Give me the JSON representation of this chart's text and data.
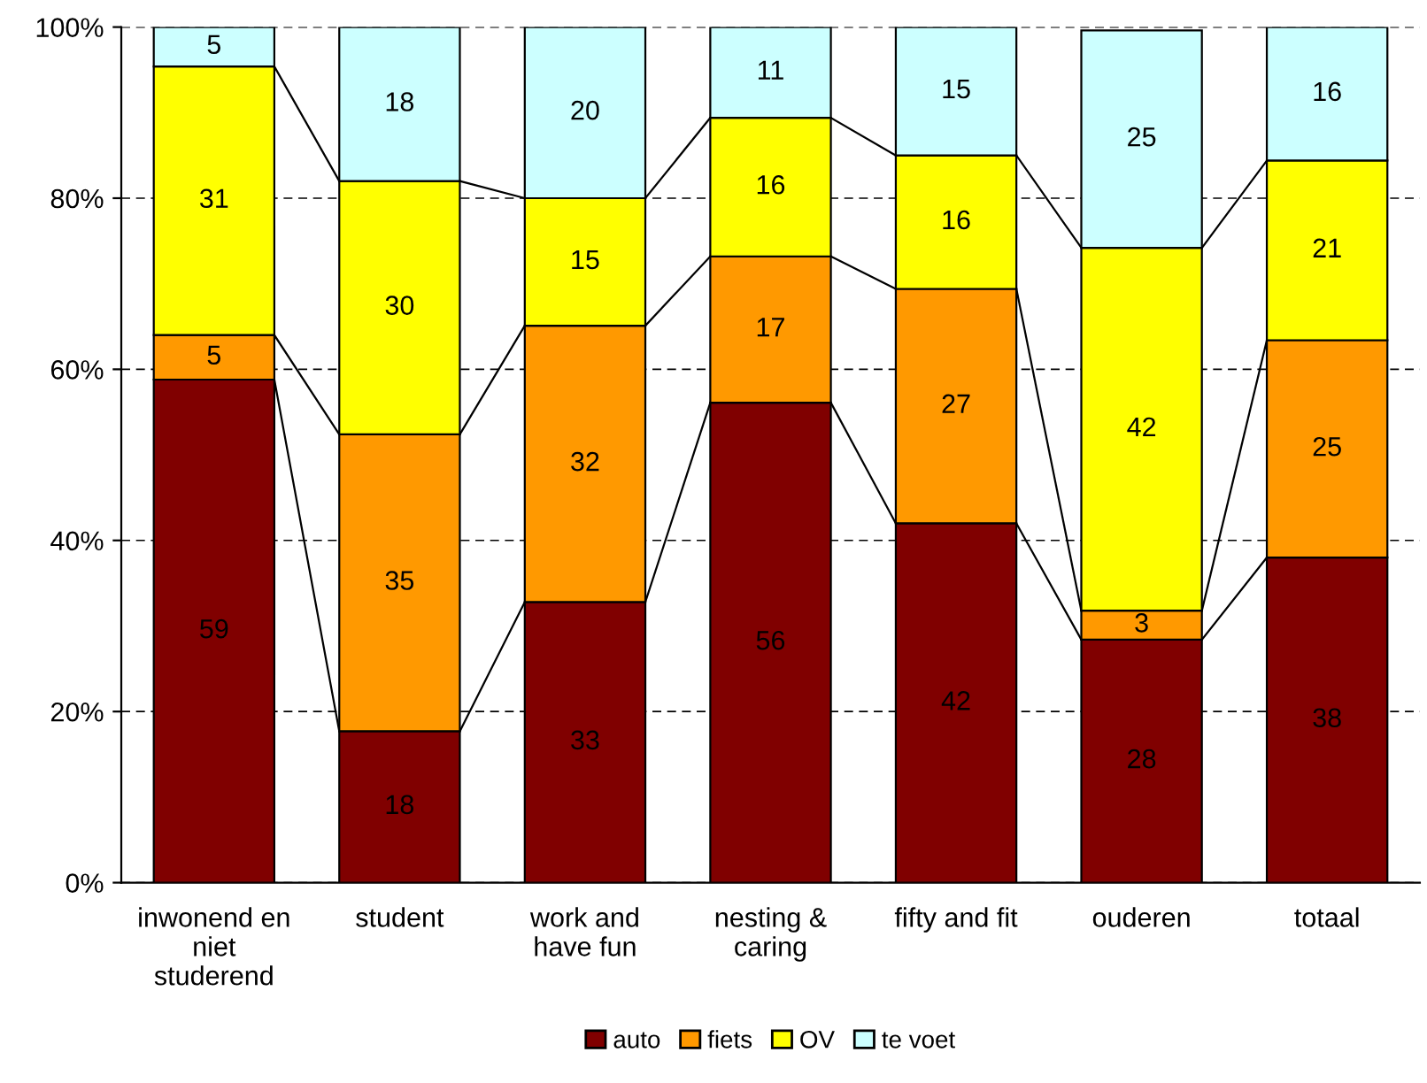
{
  "chart_data": {
    "type": "bar",
    "stacked": true,
    "categories": [
      "inwonend en\nniet\nstuderend",
      "student",
      "work and\nhave fun",
      "nesting &\ncaring",
      "fifty and fit",
      "ouderen",
      "totaal"
    ],
    "series": [
      {
        "name": "auto",
        "color": "#800000",
        "values": [
          58.8,
          17.7,
          32.8,
          56.1,
          42.0,
          28.4,
          38.0
        ],
        "value_labels": [
          "59",
          "18",
          "33",
          "56",
          "42",
          "28",
          "38"
        ]
      },
      {
        "name": "fiets",
        "color": "#ff9900",
        "values": [
          5.2,
          34.7,
          32.3,
          17.1,
          27.4,
          3.4,
          25.4
        ],
        "value_labels": [
          "5",
          "35",
          "32",
          "17",
          "27",
          "3",
          "25"
        ]
      },
      {
        "name": "OV",
        "color": "#ffff00",
        "values": [
          31.4,
          29.6,
          14.9,
          16.2,
          15.6,
          42.4,
          21.0
        ],
        "value_labels": [
          "31",
          "30",
          "15",
          "16",
          "16",
          "42",
          "21"
        ]
      },
      {
        "name": "te voet",
        "color": "#ccffff",
        "values": [
          4.6,
          18.0,
          20.0,
          10.6,
          15.0,
          25.4,
          15.6
        ],
        "value_labels": [
          "5",
          "18",
          "20",
          "11",
          "15",
          "25",
          "16"
        ]
      }
    ],
    "ylim": [
      0,
      100
    ],
    "yticks": [
      {
        "value": 0,
        "label": "0%"
      },
      {
        "value": 20,
        "label": "20%"
      },
      {
        "value": 40,
        "label": "40%"
      },
      {
        "value": 60,
        "label": "60%"
      },
      {
        "value": 80,
        "label": "80%"
      },
      {
        "value": 100,
        "label": "100%"
      }
    ],
    "grid": "y",
    "legend": "bottom"
  }
}
